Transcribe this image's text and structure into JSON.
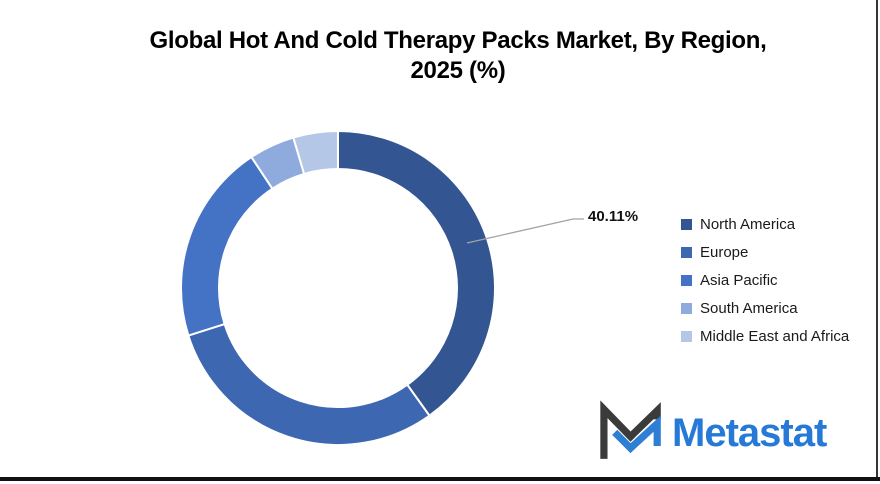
{
  "title": {
    "line1": "Global Hot And Cold Therapy Packs Market, By Region,",
    "line2": "2025 (%)"
  },
  "chart_data": {
    "type": "pie",
    "subtype": "donut",
    "title": "Global Hot And Cold Therapy Packs Market, By Region, 2025 (%)",
    "categories": [
      "North America",
      "Europe",
      "Asia Pacific",
      "South America",
      "Middle East and Africa"
    ],
    "values": [
      40.11,
      30.0,
      20.6,
      4.7,
      4.59
    ],
    "unit": "%",
    "colors": [
      "#335592",
      "#3D67B0",
      "#4472C4",
      "#8FAADC",
      "#B4C7E7"
    ],
    "hole_ratio": 0.76,
    "start_angle_deg": 0,
    "direction": "clockwise",
    "legend_position": "right",
    "grid": false,
    "data_labels": [
      {
        "category": "North America",
        "text": "40.11%"
      }
    ]
  },
  "callout": {
    "label": "40.11%",
    "line_color": "#A3A3A3"
  },
  "legend": {
    "items": [
      {
        "label": "North America"
      },
      {
        "label": "Europe"
      },
      {
        "label": "Asia Pacific"
      },
      {
        "label": "South America"
      },
      {
        "label": "Middle East and Africa"
      }
    ]
  },
  "logo": {
    "text": "Metastat",
    "text_color": "#2679D6",
    "icon_dark_color": "#3B3B3B",
    "icon_blue_color": "#2E7FD4"
  }
}
